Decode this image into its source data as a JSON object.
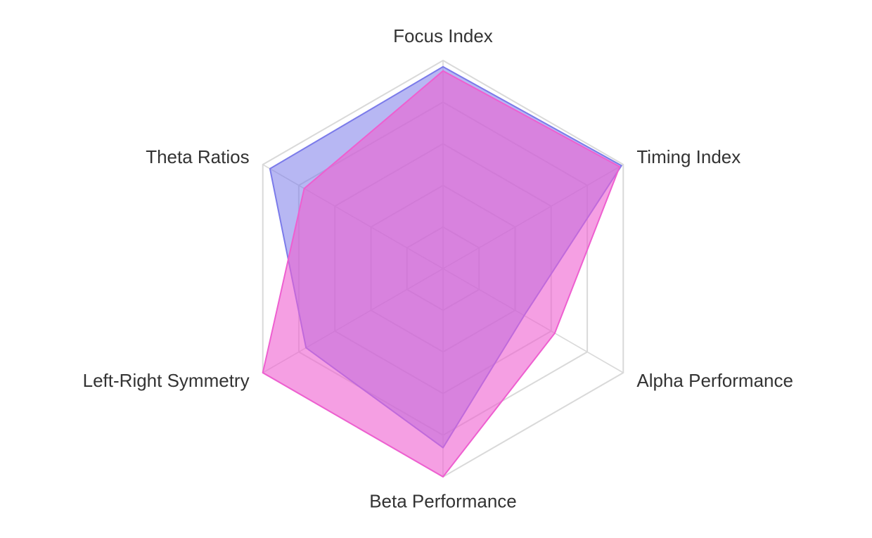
{
  "chart_data": {
    "type": "radar",
    "axes": [
      "Focus Index",
      "Timing Index",
      "Alpha Performance",
      "Beta Performance",
      "Left-Right Symmetry",
      "Theta Ratios"
    ],
    "rlim": [
      0,
      100
    ],
    "grid_levels": [
      20,
      40,
      60,
      80,
      100
    ],
    "grid": true,
    "legend": "none",
    "series": [
      {
        "values": [
          97,
          99,
          45,
          86,
          76,
          96
        ],
        "color": "#7b7bea",
        "fill_opacity": 0.55
      },
      {
        "values": [
          95,
          98,
          62,
          100,
          100,
          77
        ],
        "color": "#ee5fd0",
        "fill_opacity": 0.6
      }
    ]
  }
}
